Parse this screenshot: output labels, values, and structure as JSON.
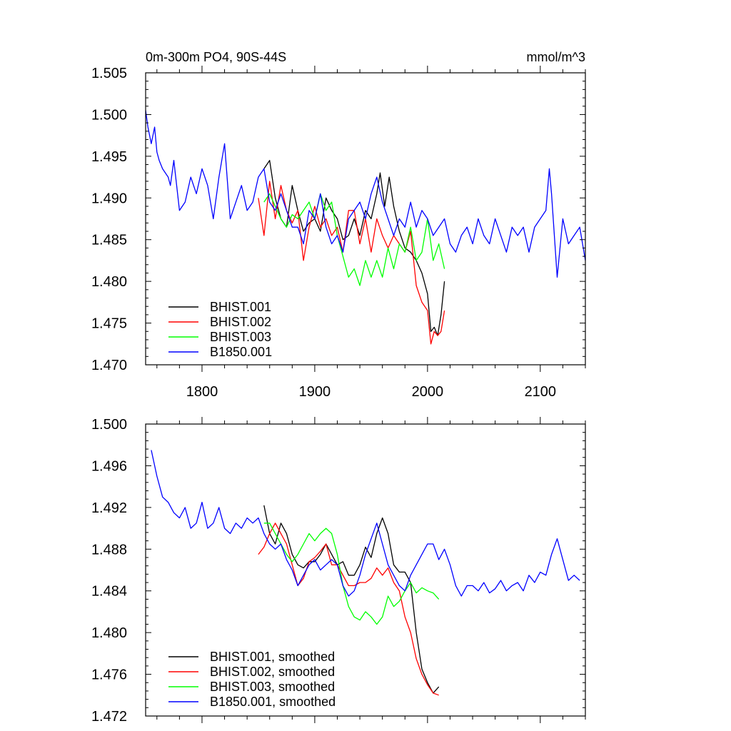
{
  "chart_data": [
    {
      "type": "line",
      "title": "0m-300m PO4, 90S-44S",
      "units": "mmol/m^3",
      "xlabel": "",
      "ylabel": "",
      "xlim": [
        1750,
        2140
      ],
      "ylim": [
        1.47,
        1.505
      ],
      "xticks": [
        1800,
        1900,
        2000,
        2100
      ],
      "xtick_labels": [
        "1800",
        "1900",
        "2000",
        "2100"
      ],
      "yticks": [
        1.47,
        1.475,
        1.48,
        1.485,
        1.49,
        1.495,
        1.5,
        1.505
      ],
      "ytick_labels": [
        "1.470",
        "1.475",
        "1.480",
        "1.485",
        "1.490",
        "1.495",
        "1.500",
        "1.505"
      ],
      "legend_position": "bottom-left",
      "series": [
        {
          "name": "BHIST.001",
          "color": "#000000",
          "x": [
            1855,
            1860,
            1865,
            1870,
            1875,
            1880,
            1885,
            1890,
            1895,
            1900,
            1905,
            1910,
            1915,
            1920,
            1925,
            1930,
            1935,
            1940,
            1945,
            1950,
            1955,
            1958,
            1962,
            1966,
            1970,
            1975,
            1980,
            1985,
            1990,
            1995,
            2000,
            2003,
            2006,
            2009,
            2012,
            2015
          ],
          "y": [
            1.4935,
            1.4945,
            1.49,
            1.4875,
            1.4865,
            1.4915,
            1.4885,
            1.486,
            1.487,
            1.4875,
            1.486,
            1.49,
            1.4885,
            1.4875,
            1.485,
            1.4855,
            1.4875,
            1.4855,
            1.4885,
            1.4875,
            1.4905,
            1.493,
            1.489,
            1.4925,
            1.489,
            1.486,
            1.484,
            1.4835,
            1.4825,
            1.481,
            1.4785,
            1.474,
            1.4745,
            1.4735,
            1.476,
            1.48
          ]
        },
        {
          "name": "BHIST.002",
          "color": "#ff0000",
          "x": [
            1850,
            1855,
            1860,
            1865,
            1870,
            1875,
            1880,
            1885,
            1890,
            1895,
            1900,
            1905,
            1910,
            1915,
            1920,
            1925,
            1930,
            1935,
            1940,
            1945,
            1950,
            1955,
            1960,
            1965,
            1970,
            1975,
            1980,
            1985,
            1990,
            1995,
            2000,
            2003,
            2006,
            2009,
            2012,
            2015
          ],
          "y": [
            1.49,
            1.4855,
            1.492,
            1.4875,
            1.4915,
            1.4885,
            1.487,
            1.4885,
            1.4825,
            1.4865,
            1.489,
            1.4865,
            1.4875,
            1.4855,
            1.4865,
            1.4835,
            1.4885,
            1.4885,
            1.4845,
            1.4875,
            1.4835,
            1.4875,
            1.4855,
            1.484,
            1.4855,
            1.4845,
            1.4835,
            1.486,
            1.4795,
            1.4775,
            1.4765,
            1.4725,
            1.474,
            1.4735,
            1.474,
            1.4765
          ]
        },
        {
          "name": "BHIST.003",
          "color": "#00ff00",
          "x": [
            1855,
            1860,
            1865,
            1870,
            1875,
            1880,
            1885,
            1890,
            1895,
            1900,
            1905,
            1910,
            1915,
            1920,
            1925,
            1930,
            1935,
            1940,
            1945,
            1950,
            1955,
            1960,
            1965,
            1970,
            1975,
            1980,
            1985,
            1990,
            1995,
            2000,
            2005,
            2010,
            2015
          ],
          "y": [
            1.4895,
            1.4905,
            1.489,
            1.4875,
            1.4865,
            1.488,
            1.4875,
            1.4885,
            1.4895,
            1.4875,
            1.4905,
            1.4885,
            1.4895,
            1.4855,
            1.483,
            1.4805,
            1.4815,
            1.4795,
            1.4825,
            1.4805,
            1.4825,
            1.4805,
            1.484,
            1.4815,
            1.4845,
            1.4835,
            1.4865,
            1.4825,
            1.4835,
            1.4875,
            1.4825,
            1.4845,
            1.4815
          ]
        },
        {
          "name": "B1850.001",
          "color": "#0000ff",
          "x": [
            1750,
            1752,
            1755,
            1758,
            1760,
            1762,
            1765,
            1770,
            1772,
            1775,
            1780,
            1785,
            1790,
            1795,
            1800,
            1805,
            1810,
            1815,
            1820,
            1825,
            1830,
            1835,
            1840,
            1845,
            1850,
            1855,
            1860,
            1865,
            1870,
            1875,
            1880,
            1885,
            1890,
            1895,
            1900,
            1905,
            1910,
            1915,
            1920,
            1925,
            1930,
            1935,
            1940,
            1945,
            1950,
            1955,
            1960,
            1965,
            1970,
            1975,
            1980,
            1985,
            1990,
            1995,
            2000,
            2005,
            2010,
            2015,
            2020,
            2025,
            2030,
            2035,
            2040,
            2045,
            2050,
            2055,
            2060,
            2065,
            2070,
            2075,
            2080,
            2085,
            2090,
            2095,
            2100,
            2105,
            2108,
            2110,
            2115,
            2120,
            2125,
            2130,
            2135,
            2140
          ],
          "y": [
            1.5005,
            1.4985,
            1.4965,
            1.4985,
            1.4955,
            1.4945,
            1.4935,
            1.4925,
            1.4915,
            1.4945,
            1.4885,
            1.4895,
            1.4925,
            1.4905,
            1.4935,
            1.4915,
            1.4875,
            1.4925,
            1.4965,
            1.4875,
            1.4895,
            1.4915,
            1.4885,
            1.4895,
            1.4925,
            1.4935,
            1.4895,
            1.4885,
            1.4905,
            1.4885,
            1.4865,
            1.4865,
            1.4845,
            1.4885,
            1.4875,
            1.4905,
            1.4865,
            1.4845,
            1.4855,
            1.4835,
            1.4875,
            1.4885,
            1.4895,
            1.4875,
            1.4905,
            1.4925,
            1.4895,
            1.4875,
            1.4855,
            1.4875,
            1.4865,
            1.4895,
            1.4865,
            1.4885,
            1.4875,
            1.4855,
            1.4865,
            1.4875,
            1.4845,
            1.4835,
            1.4855,
            1.4865,
            1.4845,
            1.4875,
            1.4855,
            1.4845,
            1.4875,
            1.4855,
            1.4835,
            1.4865,
            1.4855,
            1.4865,
            1.4835,
            1.4865,
            1.4875,
            1.4885,
            1.4935,
            1.4905,
            1.4805,
            1.4875,
            1.4845,
            1.4855,
            1.4865,
            1.4825
          ]
        }
      ]
    },
    {
      "type": "line",
      "title": "",
      "xlabel": "",
      "ylabel": "",
      "xlim": [
        1750,
        2140
      ],
      "ylim": [
        1.472,
        1.5
      ],
      "xticks": [
        1800,
        1900,
        2000,
        2100
      ],
      "yticks": [
        1.472,
        1.476,
        1.48,
        1.484,
        1.488,
        1.492,
        1.496,
        1.5
      ],
      "ytick_labels": [
        "1.472",
        "1.476",
        "1.480",
        "1.484",
        "1.488",
        "1.492",
        "1.496",
        "1.500"
      ],
      "legend_position": "bottom-left",
      "series": [
        {
          "name": "BHIST.001, smoothed",
          "color": "#000000",
          "x": [
            1855,
            1860,
            1865,
            1870,
            1875,
            1880,
            1885,
            1890,
            1895,
            1900,
            1905,
            1910,
            1915,
            1920,
            1925,
            1930,
            1935,
            1940,
            1945,
            1950,
            1955,
            1960,
            1965,
            1970,
            1975,
            1980,
            1985,
            1990,
            1995,
            2000,
            2005,
            2010
          ],
          "y": [
            1.4922,
            1.4895,
            1.4885,
            1.4905,
            1.4895,
            1.4875,
            1.4865,
            1.4862,
            1.4868,
            1.4868,
            1.4875,
            1.4885,
            1.4875,
            1.4865,
            1.4868,
            1.4855,
            1.4855,
            1.4865,
            1.4882,
            1.4872,
            1.4895,
            1.491,
            1.4895,
            1.4865,
            1.4858,
            1.4858,
            1.4848,
            1.48,
            1.4765,
            1.4752,
            1.4742,
            1.4748
          ]
        },
        {
          "name": "BHIST.002, smoothed",
          "color": "#ff0000",
          "x": [
            1850,
            1855,
            1860,
            1865,
            1870,
            1875,
            1880,
            1885,
            1890,
            1895,
            1900,
            1905,
            1910,
            1915,
            1920,
            1925,
            1930,
            1935,
            1940,
            1945,
            1950,
            1955,
            1960,
            1965,
            1970,
            1975,
            1980,
            1985,
            1990,
            1995,
            2000,
            2005,
            2010
          ],
          "y": [
            1.4875,
            1.4882,
            1.4895,
            1.4905,
            1.4895,
            1.4885,
            1.4865,
            1.4845,
            1.4852,
            1.4868,
            1.4872,
            1.4878,
            1.4885,
            1.4865,
            1.4865,
            1.4855,
            1.4845,
            1.4845,
            1.4848,
            1.4848,
            1.4852,
            1.4862,
            1.4855,
            1.4862,
            1.4848,
            1.484,
            1.4815,
            1.48,
            1.4775,
            1.476,
            1.475,
            1.4742,
            1.474
          ]
        },
        {
          "name": "BHIST.003, smoothed",
          "color": "#00ff00",
          "x": [
            1855,
            1860,
            1865,
            1870,
            1875,
            1880,
            1885,
            1890,
            1895,
            1900,
            1905,
            1910,
            1915,
            1920,
            1925,
            1930,
            1935,
            1940,
            1945,
            1950,
            1955,
            1960,
            1965,
            1970,
            1975,
            1980,
            1985,
            1990,
            1995,
            2000,
            2005,
            2010
          ],
          "y": [
            1.4905,
            1.4905,
            1.4895,
            1.4885,
            1.4875,
            1.4868,
            1.4875,
            1.4885,
            1.4895,
            1.4888,
            1.4895,
            1.49,
            1.4895,
            1.4875,
            1.4845,
            1.4825,
            1.4815,
            1.4812,
            1.482,
            1.4815,
            1.4808,
            1.4815,
            1.4835,
            1.4825,
            1.483,
            1.484,
            1.4848,
            1.4838,
            1.4843,
            1.484,
            1.4838,
            1.4832
          ]
        },
        {
          "name": "B1850.001, smoothed",
          "color": "#0000ff",
          "x": [
            1755,
            1760,
            1765,
            1770,
            1775,
            1780,
            1785,
            1790,
            1795,
            1800,
            1805,
            1810,
            1815,
            1820,
            1825,
            1830,
            1835,
            1840,
            1845,
            1850,
            1855,
            1860,
            1865,
            1870,
            1875,
            1880,
            1885,
            1890,
            1895,
            1900,
            1905,
            1910,
            1915,
            1920,
            1925,
            1930,
            1935,
            1940,
            1945,
            1950,
            1955,
            1960,
            1965,
            1970,
            1975,
            1980,
            1985,
            1990,
            1995,
            2000,
            2005,
            2010,
            2015,
            2020,
            2025,
            2030,
            2035,
            2040,
            2045,
            2050,
            2055,
            2060,
            2065,
            2070,
            2075,
            2080,
            2085,
            2090,
            2095,
            2100,
            2105,
            2110,
            2115,
            2120,
            2125,
            2130,
            2135
          ],
          "y": [
            1.4975,
            1.495,
            1.493,
            1.4925,
            1.4915,
            1.491,
            1.492,
            1.49,
            1.4905,
            1.4925,
            1.49,
            1.4905,
            1.492,
            1.49,
            1.4895,
            1.4905,
            1.49,
            1.491,
            1.4905,
            1.491,
            1.4895,
            1.4885,
            1.488,
            1.4885,
            1.487,
            1.486,
            1.4845,
            1.4855,
            1.4865,
            1.487,
            1.486,
            1.4865,
            1.487,
            1.4865,
            1.4845,
            1.4835,
            1.484,
            1.4855,
            1.4875,
            1.489,
            1.4905,
            1.4885,
            1.4865,
            1.4855,
            1.4845,
            1.484,
            1.4855,
            1.4865,
            1.4875,
            1.4885,
            1.4885,
            1.487,
            1.488,
            1.4865,
            1.4845,
            1.4835,
            1.4845,
            1.4845,
            1.484,
            1.4848,
            1.4838,
            1.4842,
            1.485,
            1.484,
            1.4845,
            1.4848,
            1.484,
            1.4855,
            1.4848,
            1.4858,
            1.4855,
            1.4875,
            1.489,
            1.487,
            1.485,
            1.4855,
            1.485
          ]
        }
      ]
    }
  ]
}
